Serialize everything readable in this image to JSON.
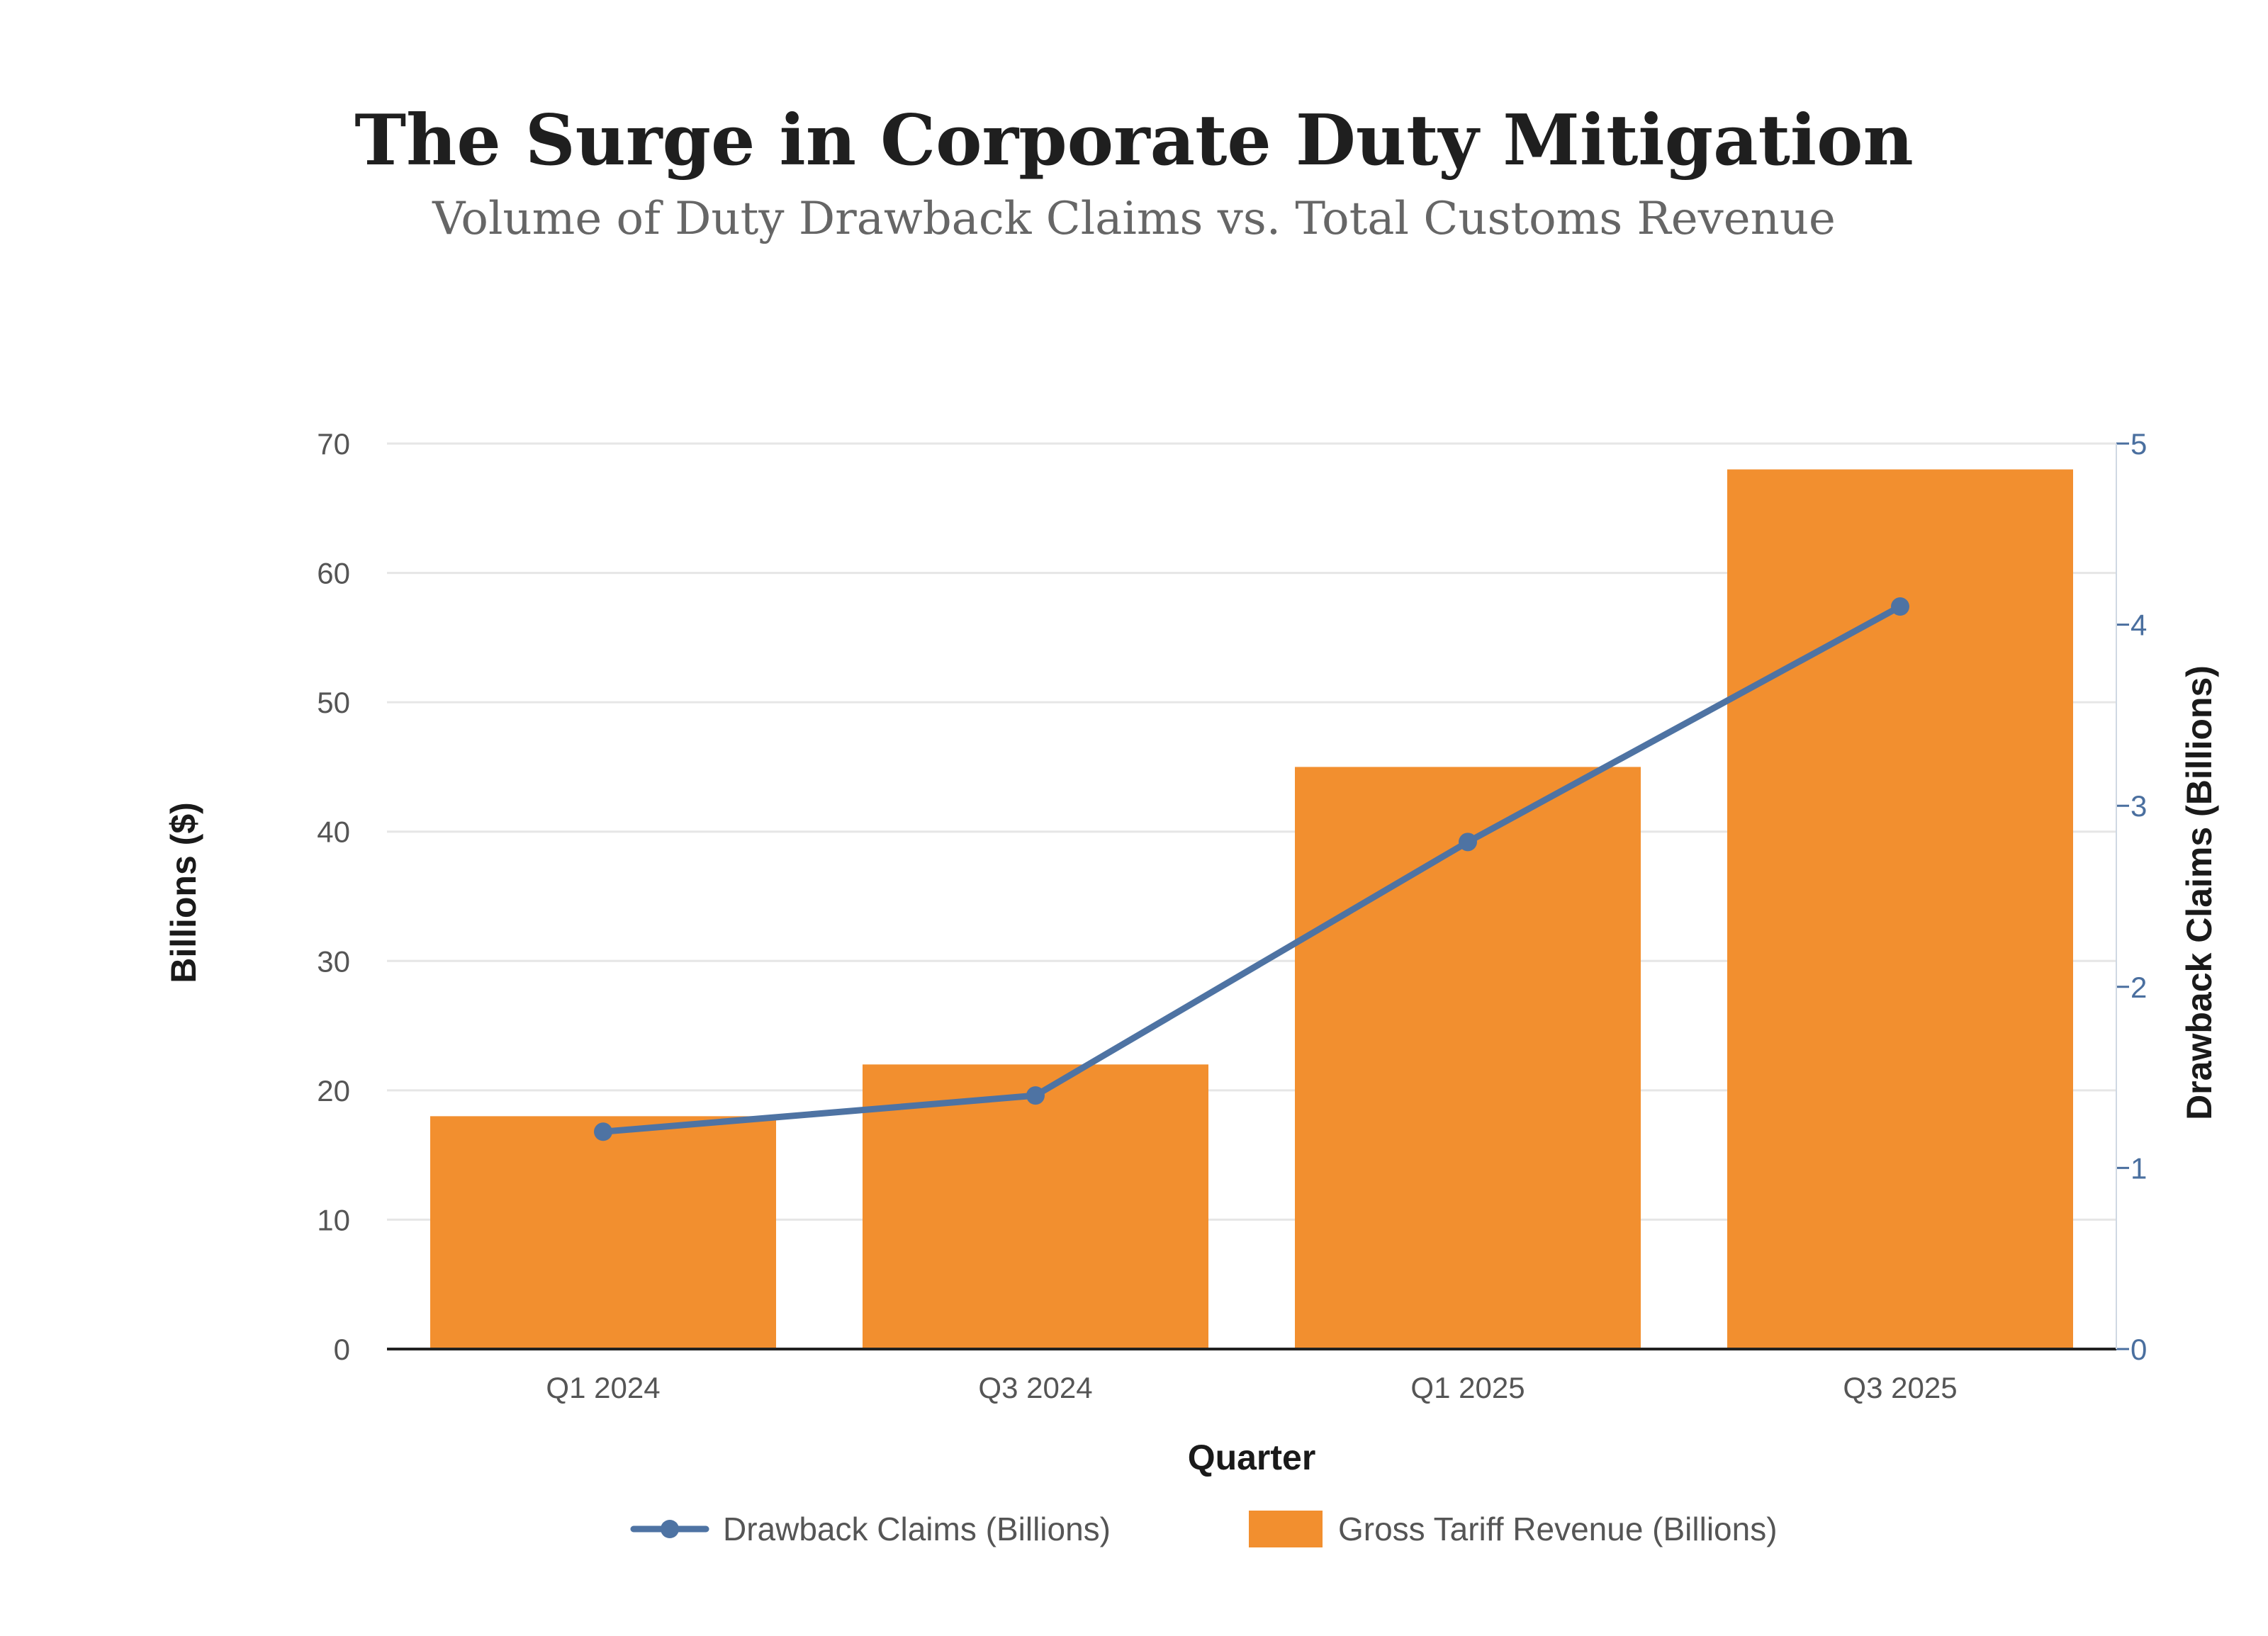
{
  "chart_data": {
    "type": "bar",
    "title": "The Surge in Corporate Duty Mitigation",
    "subtitle": "Volume of Duty Drawback Claims vs. Total Customs Revenue",
    "categories": [
      "Q1 2024",
      "Q3 2024",
      "Q1 2025",
      "Q3 2025"
    ],
    "xlabel": "Quarter",
    "ylabel": "Billions ($)",
    "y2label": "Drawback Claims (Billions)",
    "ylim": [
      0,
      70
    ],
    "y2lim": [
      0,
      5
    ],
    "yticks": [
      "0",
      "10",
      "20",
      "30",
      "40",
      "50",
      "60",
      "70"
    ],
    "y2ticks": [
      "0",
      "1",
      "2",
      "3",
      "4",
      "5"
    ],
    "grid": true,
    "legend_position": "bottom",
    "series": [
      {
        "name": "Gross Tariff Revenue (Billions)",
        "type": "bar",
        "axis": "left",
        "color": "#f28f2f",
        "values": [
          18,
          22,
          45,
          68
        ]
      },
      {
        "name": "Drawback Claims (Billions)",
        "type": "line",
        "axis": "right",
        "color": "#4e73a3",
        "values": [
          1.2,
          1.4,
          2.8,
          4.1
        ]
      }
    ]
  }
}
